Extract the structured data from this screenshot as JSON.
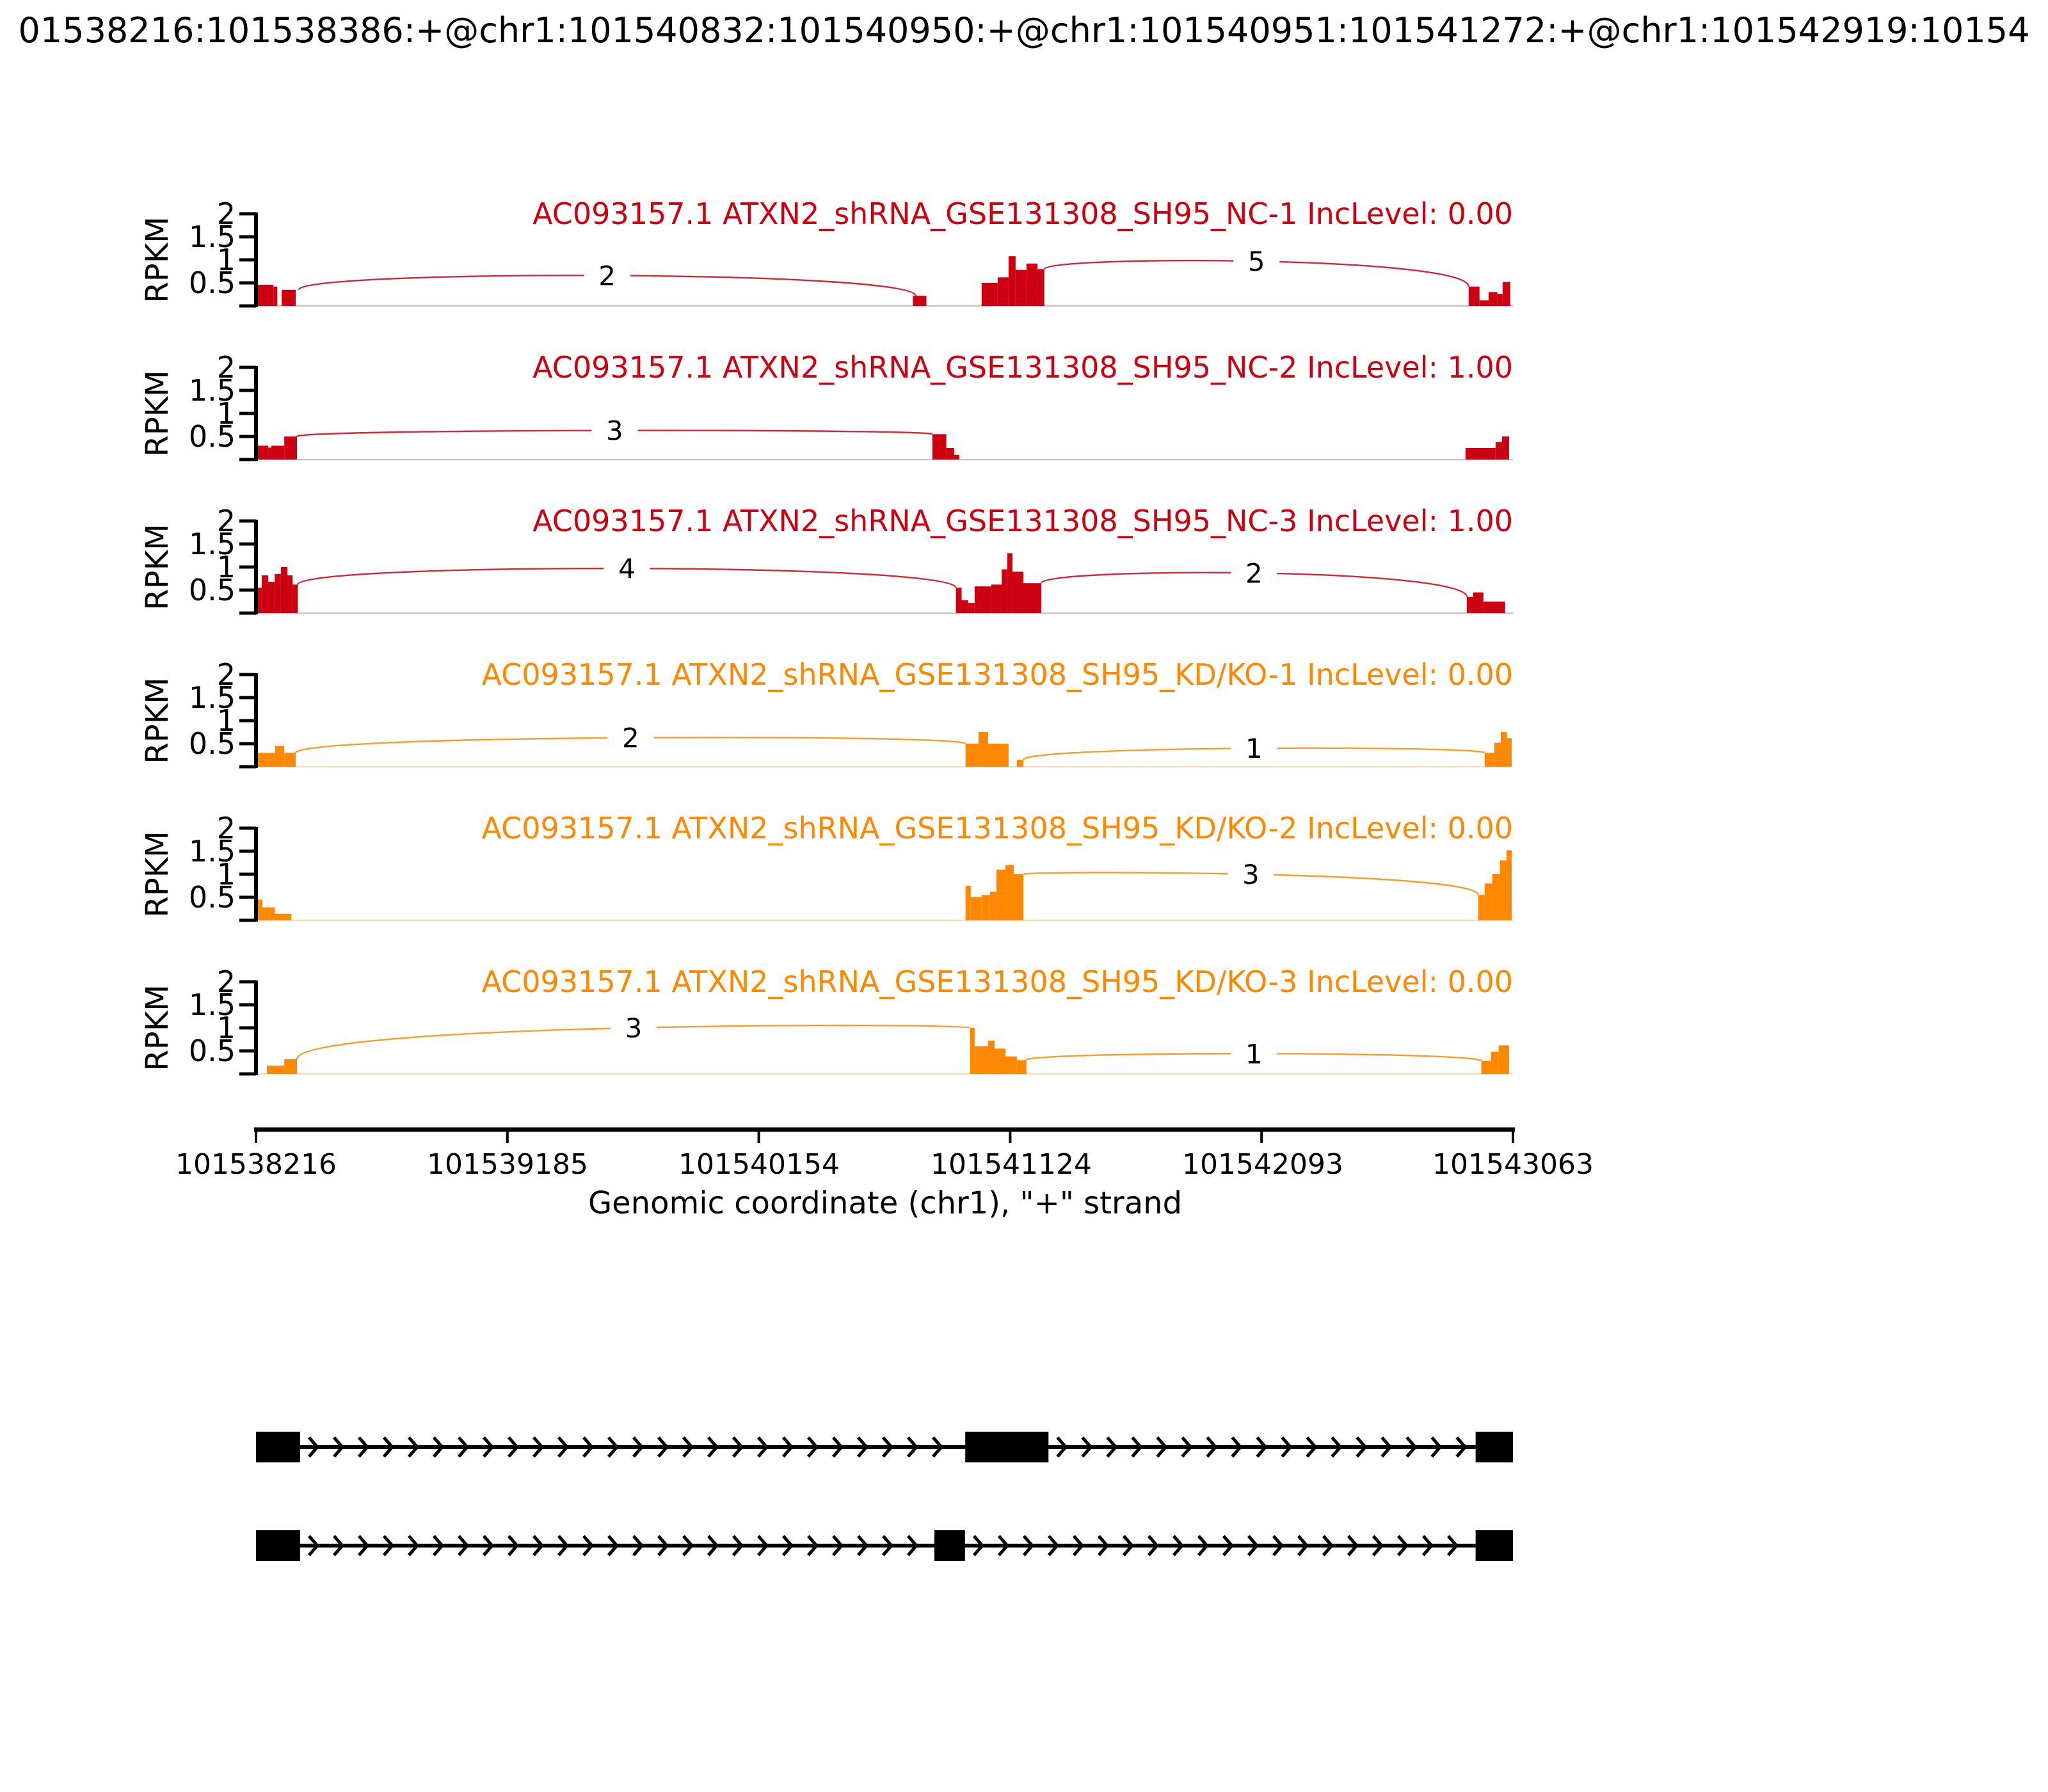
{
  "title": "01538216:101538386:+@chr1:101540832:101540950:+@chr1:101540951:101541272:+@chr1:101542919:10154",
  "axis": {
    "label": "Genomic coordinate (chr1), \"+\" strand",
    "ticks": [
      "101538216",
      "101539185",
      "101540154",
      "101541124",
      "101542093",
      "101543063"
    ],
    "domain": [
      101538216,
      101543063
    ]
  },
  "y_axis": {
    "label": "RPKM",
    "ticks": [
      "0.5",
      "1",
      "1.5",
      "2"
    ],
    "tick_values": [
      0.5,
      1,
      1.5,
      2
    ],
    "max": 2
  },
  "colors": {
    "nc_red": "#CC0011",
    "kdko_orange": "#FF8800",
    "gene_model": "#000000"
  },
  "chart_data": {
    "type": "area",
    "description": "sashimi coverage tracks with junction read counts",
    "tracks": [
      {
        "name": "AC093157.1 ATXN2_shRNA_GSE131308_SH95_NC-1 IncLevel: 0.00",
        "color": "#CC0011",
        "coverage": [
          [
            101538216,
            101538283,
            0.46
          ],
          [
            101538283,
            101538298,
            0.42
          ],
          [
            101538315,
            101538369,
            0.35
          ],
          [
            101540749,
            101540801,
            0.22
          ],
          [
            101541014,
            101541076,
            0.5
          ],
          [
            101541076,
            101541118,
            0.62
          ],
          [
            101541118,
            101541145,
            1.08
          ],
          [
            101541145,
            101541187,
            0.78
          ],
          [
            101541187,
            101541229,
            0.92
          ],
          [
            101541229,
            101541256,
            0.8
          ],
          [
            101542892,
            101542934,
            0.42
          ],
          [
            101542934,
            101542969,
            0.12
          ],
          [
            101542969,
            101543003,
            0.3
          ],
          [
            101543003,
            101543023,
            0.26
          ],
          [
            101543023,
            101543053,
            0.52
          ]
        ],
        "junctions": [
          {
            "from": 101538380,
            "from_h": 0.35,
            "to": 101540760,
            "to_h": 0.22,
            "count": 2,
            "apex": 0.66
          },
          {
            "from": 101541256,
            "from_h": 0.8,
            "to": 101542892,
            "to_h": 0.42,
            "count": 5,
            "apex": 0.97
          }
        ]
      },
      {
        "name": "AC093157.1 ATXN2_shRNA_GSE131308_SH95_NC-2 IncLevel: 1.00",
        "color": "#CC0011",
        "coverage": [
          [
            101538216,
            101538263,
            0.3
          ],
          [
            101538263,
            101538275,
            0.26
          ],
          [
            101538275,
            101538325,
            0.3
          ],
          [
            101538325,
            101538374,
            0.5
          ],
          [
            101540824,
            101540878,
            0.55
          ],
          [
            101540878,
            101540908,
            0.25
          ],
          [
            101540908,
            101540928,
            0.1
          ],
          [
            101542880,
            101542996,
            0.25
          ],
          [
            101542996,
            101543021,
            0.38
          ],
          [
            101543021,
            101543048,
            0.5
          ]
        ],
        "junctions": [
          {
            "from": 101538374,
            "from_h": 0.5,
            "to": 101540824,
            "to_h": 0.55,
            "count": 3,
            "apex": 0.63
          }
        ]
      },
      {
        "name": "AC093157.1 ATXN2_shRNA_GSE131308_SH95_NC-3 IncLevel: 1.00",
        "color": "#CC0011",
        "coverage": [
          [
            101538216,
            101538238,
            0.55
          ],
          [
            101538238,
            101538263,
            0.82
          ],
          [
            101538263,
            101538288,
            0.68
          ],
          [
            101538288,
            101538312,
            0.85
          ],
          [
            101538312,
            101538337,
            1.0
          ],
          [
            101538337,
            101538357,
            0.82
          ],
          [
            101538357,
            101538377,
            0.62
          ],
          [
            101540915,
            101540937,
            0.55
          ],
          [
            101540937,
            101540962,
            0.28
          ],
          [
            101540962,
            101540987,
            0.22
          ],
          [
            101540987,
            101541051,
            0.58
          ],
          [
            101541051,
            101541091,
            0.62
          ],
          [
            101541091,
            101541113,
            0.95
          ],
          [
            101541113,
            101541133,
            1.3
          ],
          [
            101541133,
            101541175,
            0.9
          ],
          [
            101541175,
            101541244,
            0.65
          ],
          [
            101542885,
            101542910,
            0.35
          ],
          [
            101542910,
            101542949,
            0.45
          ],
          [
            101542949,
            101543033,
            0.25
          ]
        ],
        "junctions": [
          {
            "from": 101538377,
            "from_h": 0.62,
            "to": 101540915,
            "to_h": 0.55,
            "count": 4,
            "apex": 0.97
          },
          {
            "from": 101541244,
            "from_h": 0.65,
            "to": 101542885,
            "to_h": 0.35,
            "count": 2,
            "apex": 0.87
          }
        ]
      },
      {
        "name": "AC093157.1 ATXN2_shRNA_GSE131308_SH95_KD/KO-1 IncLevel: 0.00",
        "color": "#FF8800",
        "coverage": [
          [
            101538216,
            101538290,
            0.3
          ],
          [
            101538290,
            101538325,
            0.45
          ],
          [
            101538325,
            101538369,
            0.3
          ],
          [
            101540952,
            101541002,
            0.5
          ],
          [
            101541002,
            101541039,
            0.75
          ],
          [
            101541039,
            101541118,
            0.5
          ],
          [
            101541150,
            101541175,
            0.15
          ],
          [
            101542954,
            101542991,
            0.3
          ],
          [
            101542991,
            101543016,
            0.52
          ],
          [
            101543016,
            101543040,
            0.75
          ],
          [
            101543040,
            101543058,
            0.62
          ]
        ],
        "junctions": [
          {
            "from": 101538369,
            "from_h": 0.3,
            "to": 101540952,
            "to_h": 0.5,
            "count": 2,
            "apex": 0.63
          },
          {
            "from": 101541175,
            "from_h": 0.15,
            "to": 101542954,
            "to_h": 0.3,
            "count": 1,
            "apex": 0.4
          }
        ]
      },
      {
        "name": "AC093157.1 ATXN2_shRNA_GSE131308_SH95_KD/KO-2 IncLevel: 0.00",
        "color": "#FF8800",
        "coverage": [
          [
            101538216,
            101538241,
            0.45
          ],
          [
            101538241,
            101538288,
            0.28
          ],
          [
            101538288,
            101538352,
            0.14
          ],
          [
            101540952,
            101540972,
            0.75
          ],
          [
            101540972,
            101541014,
            0.5
          ],
          [
            101541014,
            101541046,
            0.55
          ],
          [
            101541046,
            101541071,
            0.62
          ],
          [
            101541071,
            101541106,
            1.1
          ],
          [
            101541106,
            101541138,
            1.2
          ],
          [
            101541138,
            101541175,
            1.0
          ],
          [
            101542929,
            101542954,
            0.55
          ],
          [
            101542954,
            101542983,
            0.8
          ],
          [
            101542983,
            101543013,
            1.0
          ],
          [
            101543013,
            101543038,
            1.3
          ],
          [
            101543038,
            101543058,
            1.52
          ]
        ],
        "junctions": [
          {
            "from": 101541175,
            "from_h": 1.0,
            "to": 101542929,
            "to_h": 0.55,
            "count": 3,
            "apex": 1.0
          }
        ]
      },
      {
        "name": "AC093157.1 ATXN2_shRNA_GSE131308_SH95_KD/KO-3 IncLevel: 0.00",
        "color": "#FF8800",
        "coverage": [
          [
            101538258,
            101538325,
            0.18
          ],
          [
            101538325,
            101538374,
            0.32
          ],
          [
            101540970,
            101540987,
            1.0
          ],
          [
            101540987,
            101541039,
            0.6
          ],
          [
            101541039,
            101541064,
            0.72
          ],
          [
            101541064,
            101541106,
            0.55
          ],
          [
            101541106,
            101541150,
            0.38
          ],
          [
            101541150,
            101541187,
            0.3
          ],
          [
            101542941,
            101542978,
            0.28
          ],
          [
            101542978,
            101543008,
            0.48
          ],
          [
            101543008,
            101543048,
            0.62
          ]
        ],
        "junctions": [
          {
            "from": 101538374,
            "from_h": 0.32,
            "to": 101540970,
            "to_h": 1.0,
            "count": 3,
            "apex": 1.0
          },
          {
            "from": 101541187,
            "from_h": 0.3,
            "to": 101542941,
            "to_h": 0.28,
            "count": 1,
            "apex": 0.44
          }
        ]
      }
    ],
    "transcripts": [
      {
        "exons": [
          [
            101538216,
            101538386
          ],
          [
            101540951,
            101541272
          ],
          [
            101542919,
            101543063
          ]
        ]
      },
      {
        "exons": [
          [
            101538216,
            101538386
          ],
          [
            101540832,
            101540950
          ],
          [
            101542919,
            101543063
          ]
        ]
      }
    ]
  }
}
